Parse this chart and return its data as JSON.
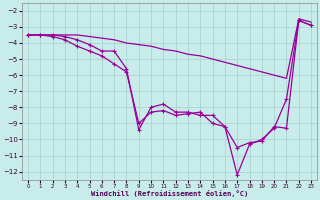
{
  "xlabel": "Windchill (Refroidissement éolien,°C)",
  "background_color": "#c8ecea",
  "grid_color": "#aad4d2",
  "line_color": "#990099",
  "xlim": [
    -0.5,
    23.5
  ],
  "ylim": [
    -12.5,
    -1.5
  ],
  "yticks": [
    -12,
    -11,
    -10,
    -9,
    -8,
    -7,
    -6,
    -5,
    -4,
    -3,
    -2
  ],
  "xticks": [
    0,
    1,
    2,
    3,
    4,
    5,
    6,
    7,
    8,
    9,
    10,
    11,
    12,
    13,
    14,
    15,
    16,
    17,
    18,
    19,
    20,
    21,
    22,
    23
  ],
  "series1": {
    "points": [
      [
        0,
        -3.5
      ],
      [
        2,
        -3.5
      ],
      [
        3,
        -3.5
      ],
      [
        4,
        -3.5
      ],
      [
        5,
        -3.6
      ],
      [
        6,
        -3.7
      ],
      [
        7,
        -3.8
      ],
      [
        8,
        -4.0
      ],
      [
        9,
        -4.1
      ],
      [
        10,
        -4.2
      ],
      [
        11,
        -4.4
      ],
      [
        12,
        -4.5
      ],
      [
        13,
        -4.7
      ],
      [
        14,
        -4.8
      ],
      [
        15,
        -5.0
      ],
      [
        16,
        -5.2
      ],
      [
        17,
        -5.4
      ],
      [
        18,
        -5.6
      ],
      [
        19,
        -5.8
      ],
      [
        20,
        -6.0
      ],
      [
        21,
        -6.2
      ],
      [
        22,
        -2.5
      ],
      [
        23,
        -2.7
      ]
    ],
    "marker": false
  },
  "series2": {
    "points": [
      [
        0,
        -3.5
      ],
      [
        1,
        -3.5
      ],
      [
        2,
        -3.5
      ],
      [
        3,
        -3.6
      ],
      [
        4,
        -3.8
      ],
      [
        5,
        -4.1
      ],
      [
        6,
        -4.5
      ],
      [
        7,
        -4.5
      ],
      [
        8,
        -5.6
      ],
      [
        9,
        -9.4
      ],
      [
        10,
        -8.0
      ],
      [
        11,
        -7.8
      ],
      [
        12,
        -8.3
      ],
      [
        13,
        -8.3
      ],
      [
        14,
        -8.5
      ],
      [
        15,
        -8.5
      ],
      [
        16,
        -9.2
      ],
      [
        17,
        -12.2
      ],
      [
        18,
        -10.3
      ],
      [
        19,
        -10.0
      ],
      [
        20,
        -9.3
      ],
      [
        21,
        -7.5
      ],
      [
        22,
        -2.6
      ],
      [
        23,
        -2.9
      ]
    ],
    "marker": true
  },
  "series3": {
    "points": [
      [
        0,
        -3.5
      ],
      [
        1,
        -3.5
      ],
      [
        2,
        -3.6
      ],
      [
        3,
        -3.8
      ],
      [
        4,
        -4.2
      ],
      [
        5,
        -4.5
      ],
      [
        6,
        -4.8
      ],
      [
        7,
        -5.3
      ],
      [
        8,
        -5.8
      ],
      [
        9,
        -9.0
      ],
      [
        10,
        -8.3
      ],
      [
        11,
        -8.2
      ],
      [
        12,
        -8.5
      ],
      [
        13,
        -8.4
      ],
      [
        14,
        -8.3
      ],
      [
        15,
        -9.0
      ],
      [
        16,
        -9.2
      ],
      [
        17,
        -10.5
      ],
      [
        18,
        -10.2
      ],
      [
        19,
        -10.1
      ],
      [
        20,
        -9.2
      ],
      [
        21,
        -9.3
      ],
      [
        22,
        -2.6
      ],
      [
        23,
        -2.9
      ]
    ],
    "marker": true
  }
}
